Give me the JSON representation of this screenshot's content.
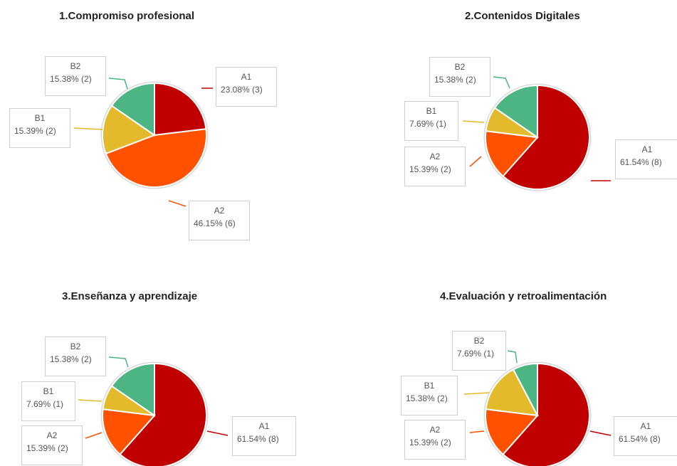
{
  "colors": {
    "A1": "#c00000",
    "A2": "#ff5100",
    "B1": "#e2ba2c",
    "B2": "#4db584"
  },
  "chart_data": [
    {
      "type": "pie",
      "title": "1.Compromiso profesional",
      "slices": [
        {
          "name": "A1",
          "value": 23.08,
          "count": 3,
          "label": "23.08% (3)"
        },
        {
          "name": "A2",
          "value": 46.15,
          "count": 6,
          "label": "46.15% (6)"
        },
        {
          "name": "B1",
          "value": 15.39,
          "count": 2,
          "label": "15.39% (2)"
        },
        {
          "name": "B2",
          "value": 15.38,
          "count": 2,
          "label": "15.38% (2)"
        }
      ]
    },
    {
      "type": "pie",
      "title": "2.Contenidos Digitales",
      "slices": [
        {
          "name": "A1",
          "value": 61.54,
          "count": 8,
          "label": "61.54% (8)"
        },
        {
          "name": "A2",
          "value": 15.39,
          "count": 2,
          "label": "15.39% (2)"
        },
        {
          "name": "B1",
          "value": 7.69,
          "count": 1,
          "label": "7.69% (1)"
        },
        {
          "name": "B2",
          "value": 15.38,
          "count": 2,
          "label": "15.38% (2)"
        }
      ]
    },
    {
      "type": "pie",
      "title": "3.Enseñanza y aprendizaje",
      "slices": [
        {
          "name": "A1",
          "value": 61.54,
          "count": 8,
          "label": "61.54% (8)"
        },
        {
          "name": "A2",
          "value": 15.39,
          "count": 2,
          "label": "15.39% (2)"
        },
        {
          "name": "B1",
          "value": 7.69,
          "count": 1,
          "label": "7.69% (1)"
        },
        {
          "name": "B2",
          "value": 15.38,
          "count": 2,
          "label": "15.38% (2)"
        }
      ]
    },
    {
      "type": "pie",
      "title": "4.Evaluación y retroalimentación",
      "slices": [
        {
          "name": "A1",
          "value": 61.54,
          "count": 8,
          "label": "61.54% (8)"
        },
        {
          "name": "A2",
          "value": 15.39,
          "count": 2,
          "label": "15.39% (2)"
        },
        {
          "name": "B1",
          "value": 15.38,
          "count": 2,
          "label": "15.38% (2)"
        },
        {
          "name": "B2",
          "value": 7.69,
          "count": 1,
          "label": "7.69% (1)"
        }
      ]
    }
  ]
}
